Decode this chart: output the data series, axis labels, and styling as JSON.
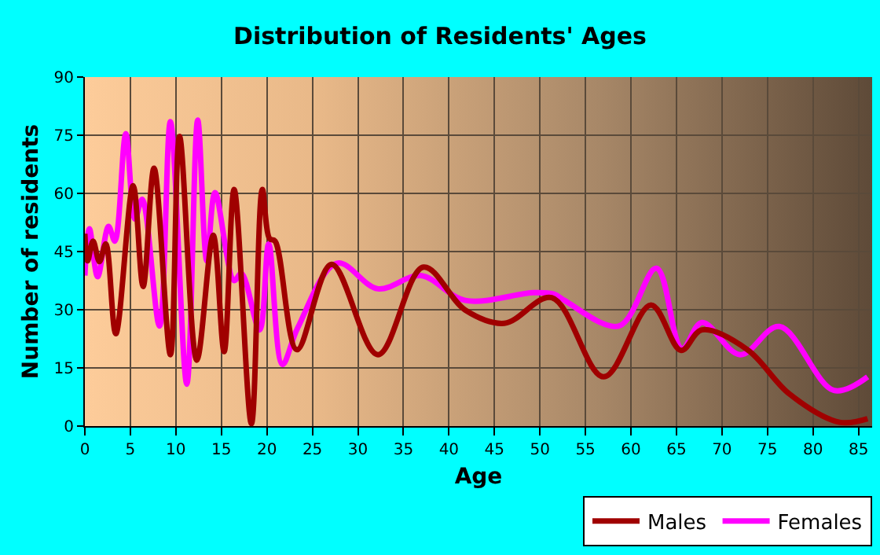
{
  "chart_data": {
    "type": "line",
    "title": "Distribution of Residents' Ages",
    "xlabel": "Age",
    "ylabel": "Number of residents",
    "xlim": [
      0,
      86.5
    ],
    "xticks": [
      0,
      5,
      10,
      15,
      20,
      25,
      30,
      35,
      40,
      45,
      50,
      55,
      60,
      65,
      70,
      75,
      80,
      85
    ],
    "ylim": [
      0,
      90
    ],
    "yticks": [
      0,
      15,
      30,
      45,
      60,
      75,
      90
    ],
    "grid": true,
    "legend": "bottom right",
    "marker": "none",
    "line_style": "solid",
    "series": [
      {
        "name": "Males",
        "color": "#a00000",
        "x": [
          0,
          0.3,
          0.9,
          1.6,
          2.3,
          3.4,
          5.3,
          6.4,
          7.6,
          9.4,
          10.4,
          12.3,
          14.1,
          15.3,
          16.4,
          18.3,
          19.5,
          20.3,
          20.9,
          23.3,
          27.1,
          32.2,
          37.2,
          41.8,
          46.1,
          51.3,
          57,
          62.2,
          65.5,
          67.8,
          72.8,
          77.4,
          82.9,
          86
        ],
        "values": [
          49.6,
          42.6,
          47.7,
          42.4,
          47,
          23.8,
          62,
          36,
          66.5,
          18.4,
          74.7,
          17,
          49.2,
          19.2,
          61,
          0.6,
          61,
          48.3,
          47.7,
          19.7,
          41.7,
          18.4,
          41,
          29.9,
          26.5,
          33.1,
          12.7,
          31.2,
          19.5,
          24.8,
          19.7,
          8.3,
          1,
          1.9
        ]
      },
      {
        "name": "Females",
        "color": "#ff00ff",
        "x": [
          0,
          0.5,
          1.4,
          2.6,
          3.3,
          4.5,
          5.5,
          6.3,
          8.2,
          9.4,
          11.2,
          12.4,
          13.4,
          14.3,
          16.4,
          17.2,
          19.2,
          20.2,
          21.7,
          23.4,
          27.7,
          32.2,
          36.9,
          41.8,
          49.3,
          51.6,
          52.7,
          58.7,
          62.8,
          65.6,
          67.8,
          72,
          76.3,
          82.3,
          86
        ],
        "values": [
          38.8,
          50.9,
          38.5,
          51.5,
          47.7,
          75.4,
          53.4,
          58.5,
          25.8,
          78.5,
          10.8,
          78.9,
          42.6,
          60.2,
          37.5,
          39.4,
          24.8,
          47,
          15.9,
          25.4,
          42,
          35.4,
          38.8,
          32.4,
          34.4,
          34,
          32.4,
          25.8,
          40.7,
          20,
          26.7,
          18.4,
          25.7,
          9.2,
          12.7
        ]
      }
    ]
  }
}
